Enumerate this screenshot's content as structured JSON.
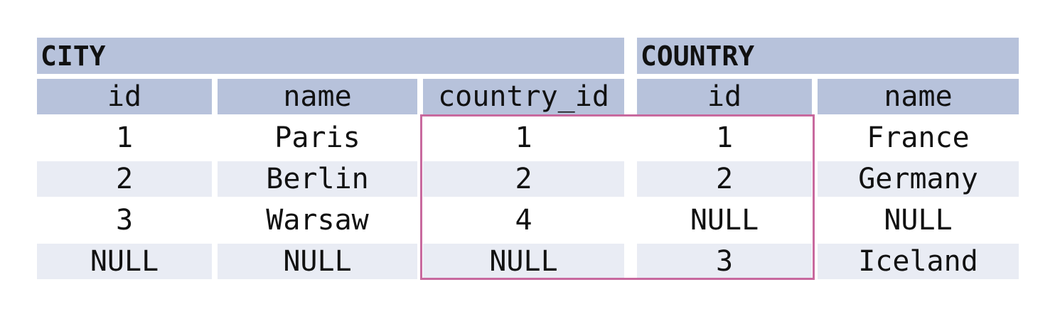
{
  "city": {
    "title": "CITY",
    "columns": [
      "id",
      "name",
      "country_id"
    ],
    "rows": [
      [
        "1",
        "Paris",
        "1"
      ],
      [
        "2",
        "Berlin",
        "2"
      ],
      [
        "3",
        "Warsaw",
        "4"
      ],
      [
        "NULL",
        "NULL",
        "NULL"
      ]
    ]
  },
  "country": {
    "title": "COUNTRY",
    "columns": [
      "id",
      "name"
    ],
    "rows": [
      [
        "1",
        "France"
      ],
      [
        "2",
        "Germany"
      ],
      [
        "NULL",
        "NULL"
      ],
      [
        "3",
        "Iceland"
      ]
    ]
  },
  "colors": {
    "header_bg": "#b7c2db",
    "stripe_bg": "#e9ecf4",
    "highlight_border": "#c8699e"
  }
}
